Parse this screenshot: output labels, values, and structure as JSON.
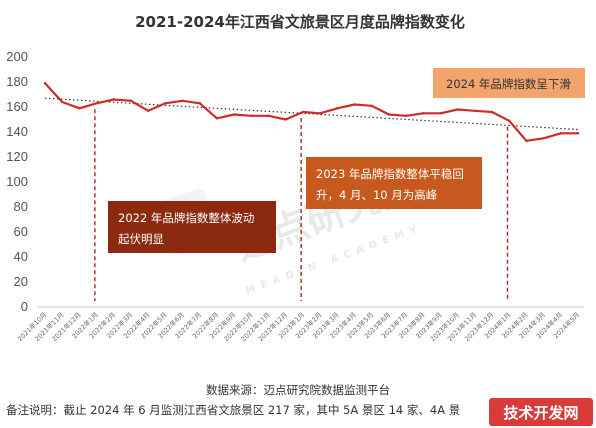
{
  "chart_data": {
    "type": "line",
    "title": "2021-2024年江西省文旅景区月度品牌指数变化",
    "yticks": [
      0,
      20,
      40,
      60,
      80,
      100,
      120,
      140,
      160,
      180,
      200
    ],
    "ylim": [
      0,
      200
    ],
    "categories": [
      "2021年10月",
      "2021年11月",
      "2021年12月",
      "2022年1月",
      "2022年2月",
      "2022年3月",
      "2022年4月",
      "2022年5月",
      "2022年6月",
      "2022年7月",
      "2022年8月",
      "2022年9月",
      "2022年10月",
      "2022年11月",
      "2022年12月",
      "2023年1月",
      "2023年2月",
      "2023年3月",
      "2023年4月",
      "2023年5月",
      "2023年6月",
      "2023年7月",
      "2023年8月",
      "2023年9月",
      "2023年10月",
      "2023年11月",
      "2023年12月",
      "2024年1月",
      "2024年2月",
      "2024年3月",
      "2024年4月",
      "2024年5月"
    ],
    "series": [
      {
        "color": "#d02b2b",
        "values": [
          179,
          164,
          159,
          163,
          166,
          165,
          157,
          163,
          165,
          163,
          151,
          154,
          153,
          153,
          150,
          156,
          155,
          159,
          162,
          161,
          154,
          153,
          155,
          155,
          158,
          157,
          156,
          149,
          133,
          135,
          139,
          139
        ]
      }
    ],
    "trendline": {
      "start": 167,
      "end": 142,
      "color": "#333333",
      "style": "dotted"
    },
    "vlines": [
      {
        "at_category": "2022年1月",
        "color": "#b22222"
      },
      {
        "at_category": "2023年1月",
        "color": "#b22222"
      },
      {
        "at_category": "2024年1月",
        "color": "#b22222"
      }
    ],
    "annotations": [
      {
        "text_lines": [
          "2022 年品牌指数整体波动",
          "起伏明显"
        ],
        "bg": "#8b2a0e",
        "text_color": "#ffffff"
      },
      {
        "text_lines": [
          "2023 年品牌指数整体平稳回",
          "升，4 月、10 月为高峰"
        ],
        "bg": "#c8591e",
        "text_color": "#ffffff"
      },
      {
        "text_lines": [
          "2024 年品牌指数呈下滑"
        ],
        "bg": "#f3a36c",
        "text_color": "#333333"
      }
    ],
    "grid": false,
    "legend": "none"
  },
  "source_text": "数据来源：迈点研究院数据监测平台",
  "note_text": "备注说明：截止 2024 年 6 月监测江西省文旅景区 217 家，其中 5A 景区 14 家、4A 景",
  "watermark": {
    "main": "迈点研究院",
    "sub": "MEADIN ACADEMY"
  },
  "badge": {
    "text": "技术开发网",
    "bg": "#d93a3a"
  }
}
